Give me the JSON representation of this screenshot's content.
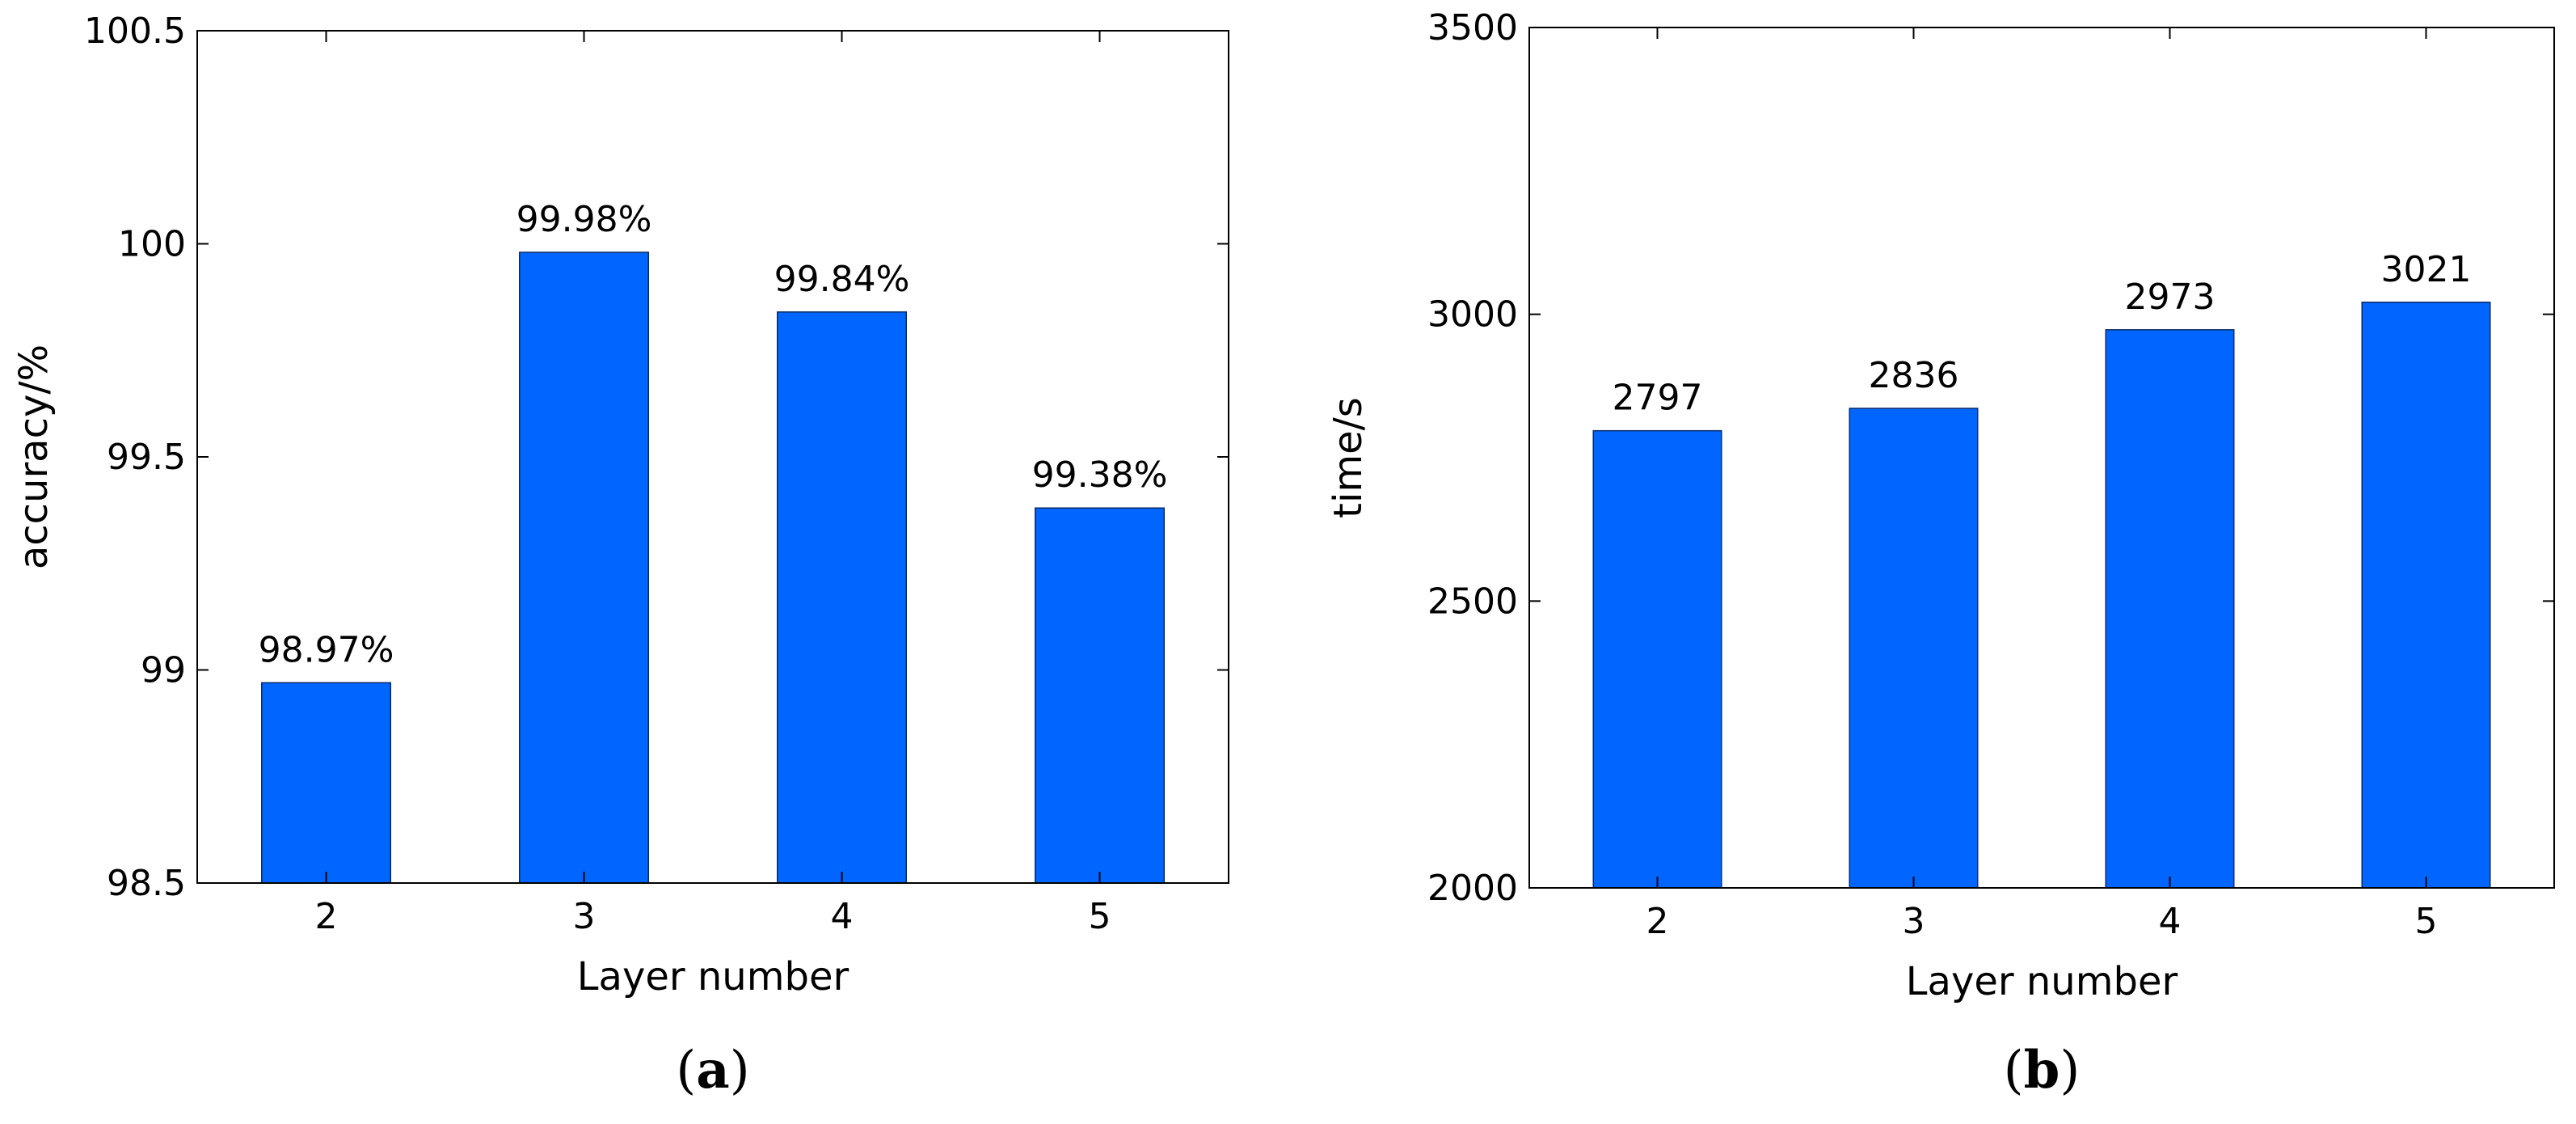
{
  "chart_data": [
    {
      "type": "bar",
      "panel_label": "a",
      "categories": [
        "2",
        "3",
        "4",
        "5"
      ],
      "values": [
        98.97,
        99.98,
        99.84,
        99.38
      ],
      "data_labels": [
        "98.97%",
        "99.98%",
        "99.84%",
        "99.38%"
      ],
      "xlabel": "Layer number",
      "ylabel": "accuracy/%",
      "ylim": [
        98.5,
        100.5
      ],
      "yticks": [
        98.5,
        99,
        99.5,
        100,
        100.5
      ],
      "ytick_labels": [
        "98.5",
        "99",
        "99.5",
        "100",
        "100.5"
      ],
      "bar_color": "#0066ff",
      "grid": false
    },
    {
      "type": "bar",
      "panel_label": "b",
      "categories": [
        "2",
        "3",
        "4",
        "5"
      ],
      "values": [
        2797,
        2836,
        2973,
        3021
      ],
      "data_labels": [
        "2797",
        "2836",
        "2973",
        "3021"
      ],
      "xlabel": "Layer number",
      "ylabel": "time/s",
      "ylim": [
        2000,
        3500
      ],
      "yticks": [
        2000,
        2500,
        3000,
        3500
      ],
      "ytick_labels": [
        "2000",
        "2500",
        "3000",
        "3500"
      ],
      "bar_color": "#0066ff",
      "grid": false
    }
  ]
}
